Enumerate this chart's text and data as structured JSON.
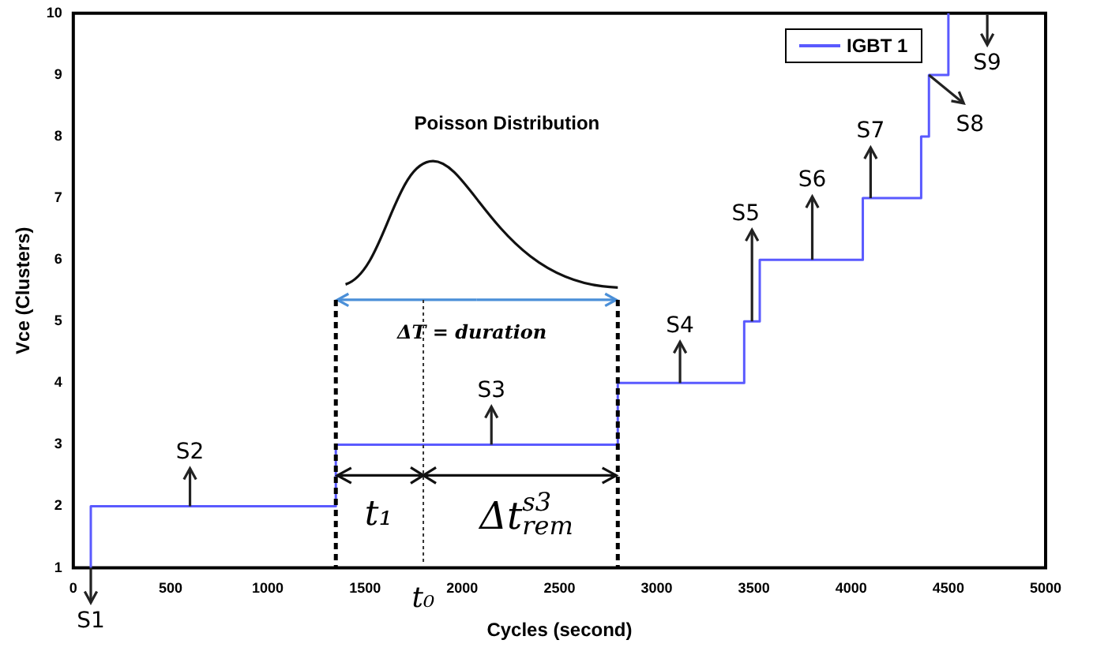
{
  "chart_data": {
    "type": "step",
    "xlabel": "Cycles (second)",
    "ylabel": "Vce (Clusters)",
    "x": [
      90,
      90,
      1350,
      2800,
      3450,
      3530,
      4060,
      4360,
      4400,
      4500
    ],
    "series": [
      {
        "name": "IGBT 1",
        "color": "#5a5aff",
        "values": [
          1,
          2,
          3,
          4,
          5,
          6,
          7,
          8,
          9,
          10
        ]
      }
    ],
    "xlim": [
      0,
      5000
    ],
    "xticks": [
      0,
      500,
      1000,
      1500,
      2000,
      2500,
      3000,
      3500,
      4000,
      4500,
      5000
    ],
    "ylim": [
      1,
      10
    ],
    "yticks": [
      1,
      2,
      3,
      4,
      5,
      6,
      7,
      8,
      9,
      10
    ],
    "grid": false,
    "legend": "top right",
    "annotations": [
      {
        "text": "S1",
        "x": 90,
        "y": 1
      },
      {
        "text": "S2",
        "x": 600,
        "y": 2
      },
      {
        "text": "S3",
        "x": 2150,
        "y": 3
      },
      {
        "text": "S4",
        "x": 3120,
        "y": 4
      },
      {
        "text": "S5",
        "x": 3490,
        "y": 5
      },
      {
        "text": "S6",
        "x": 3800,
        "y": 6
      },
      {
        "text": "S7",
        "x": 4100,
        "y": 7
      },
      {
        "text": "S8",
        "x": 4400,
        "y": 9
      },
      "S9",
      "Poisson Distribution",
      "ΔT = duration",
      "t₁",
      "t₀",
      "Δt$^{s3}$$_{rem}$"
    ]
  }
}
